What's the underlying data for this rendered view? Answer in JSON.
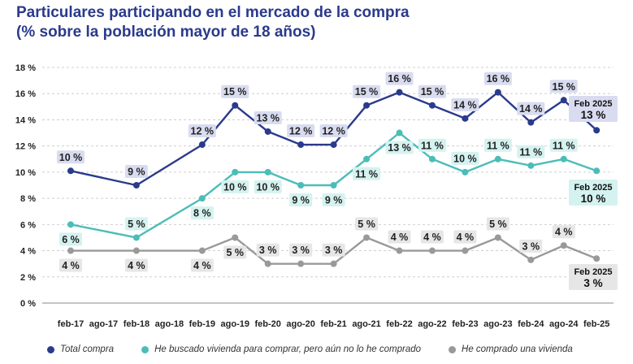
{
  "header": {
    "title_line1": "Particulares participando en el mercado de la compra",
    "title_line2": "(% sobre la población mayor de 18 años)"
  },
  "chart_data": {
    "type": "line",
    "categories": [
      "feb-17",
      "ago-17",
      "feb-18",
      "ago-18",
      "feb-19",
      "ago-19",
      "feb-20",
      "ago-20",
      "feb-21",
      "ago-21",
      "feb-22",
      "ago-22",
      "feb-23",
      "ago-23",
      "feb-24",
      "ago-24",
      "feb-25"
    ],
    "x_tick_labels": [
      "feb-17",
      "ago-17",
      "feb-18",
      "ago-18",
      "feb-19",
      "ago-19",
      "feb-20",
      "ago-20",
      "feb-21",
      "ago-21",
      "feb-22",
      "ago-22",
      "feb-23",
      "ago-23",
      "feb-24",
      "ago-24",
      "feb-25"
    ],
    "y_ticks": [
      "0 %",
      "2 %",
      "4 %",
      "6 %",
      "8 %",
      "10 %",
      "12 %",
      "14 %",
      "16 %",
      "18 %"
    ],
    "ylim": [
      0,
      18
    ],
    "series": [
      {
        "name": "Total compra",
        "color": "#2a3a8c",
        "points": [
          {
            "x": 0,
            "y": 10.1,
            "label": "10 %"
          },
          {
            "x": 2,
            "y": 9.0,
            "label": "9 %"
          },
          {
            "x": 4,
            "y": 12.1,
            "label": "12 %"
          },
          {
            "x": 5,
            "y": 15.1,
            "label": "15 %"
          },
          {
            "x": 6,
            "y": 13.1,
            "label": "13 %"
          },
          {
            "x": 7,
            "y": 12.1,
            "label": "12 %"
          },
          {
            "x": 8,
            "y": 12.1,
            "label": "12 %"
          },
          {
            "x": 9,
            "y": 15.1,
            "label": "15 %"
          },
          {
            "x": 10,
            "y": 16.1,
            "label": "16 %"
          },
          {
            "x": 11,
            "y": 15.1,
            "label": "15 %"
          },
          {
            "x": 12,
            "y": 14.1,
            "label": "14 %"
          },
          {
            "x": 13,
            "y": 16.1,
            "label": "16 %"
          },
          {
            "x": 14,
            "y": 13.8,
            "label": "14 %"
          },
          {
            "x": 15,
            "y": 15.5,
            "label": "15 %"
          },
          {
            "x": 16,
            "y": 13.2,
            "label": "13 %"
          }
        ],
        "final_label": {
          "period": "Feb 2025",
          "value": "13 %"
        }
      },
      {
        "name": "He buscado vivienda para comprar, pero aún no lo he comprado",
        "color": "#4bbdb8",
        "points": [
          {
            "x": 0,
            "y": 6.0,
            "label": "6 %"
          },
          {
            "x": 2,
            "y": 5.0,
            "label": "5 %"
          },
          {
            "x": 4,
            "y": 8.0,
            "label": "8 %"
          },
          {
            "x": 5,
            "y": 10.0,
            "label": "10 %"
          },
          {
            "x": 6,
            "y": 10.0,
            "label": "10 %"
          },
          {
            "x": 7,
            "y": 9.0,
            "label": "9 %"
          },
          {
            "x": 8,
            "y": 9.0,
            "label": "9 %"
          },
          {
            "x": 9,
            "y": 11.0,
            "label": "11 %"
          },
          {
            "x": 10,
            "y": 13.0,
            "label": "13 %"
          },
          {
            "x": 11,
            "y": 11.0,
            "label": "11 %"
          },
          {
            "x": 12,
            "y": 10.0,
            "label": "10 %"
          },
          {
            "x": 13,
            "y": 11.0,
            "label": "11 %"
          },
          {
            "x": 14,
            "y": 10.5,
            "label": "11 %"
          },
          {
            "x": 15,
            "y": 11.0,
            "label": "11 %"
          },
          {
            "x": 16,
            "y": 10.1,
            "label": "10 %"
          }
        ],
        "final_label": {
          "period": "Feb 2025",
          "value": "10 %"
        }
      },
      {
        "name": "He comprado una vivienda",
        "color": "#999999",
        "points": [
          {
            "x": 0,
            "y": 4.0,
            "label": "4 %"
          },
          {
            "x": 2,
            "y": 4.0,
            "label": "4 %"
          },
          {
            "x": 4,
            "y": 4.0,
            "label": "4 %"
          },
          {
            "x": 5,
            "y": 5.0,
            "label": "5 %"
          },
          {
            "x": 6,
            "y": 3.0,
            "label": "3 %"
          },
          {
            "x": 7,
            "y": 3.0,
            "label": "3 %"
          },
          {
            "x": 8,
            "y": 3.0,
            "label": "3 %"
          },
          {
            "x": 9,
            "y": 5.0,
            "label": "5 %"
          },
          {
            "x": 10,
            "y": 4.0,
            "label": "4 %"
          },
          {
            "x": 11,
            "y": 4.0,
            "label": "4 %"
          },
          {
            "x": 12,
            "y": 4.0,
            "label": "4 %"
          },
          {
            "x": 13,
            "y": 5.0,
            "label": "5 %"
          },
          {
            "x": 14,
            "y": 3.3,
            "label": "3 %"
          },
          {
            "x": 15,
            "y": 4.4,
            "label": "4 %"
          },
          {
            "x": 16,
            "y": 3.4,
            "label": "3 %"
          }
        ],
        "final_label": {
          "period": "Feb 2025",
          "value": "3 %"
        }
      }
    ],
    "grid": true,
    "legend_position": "bottom"
  }
}
